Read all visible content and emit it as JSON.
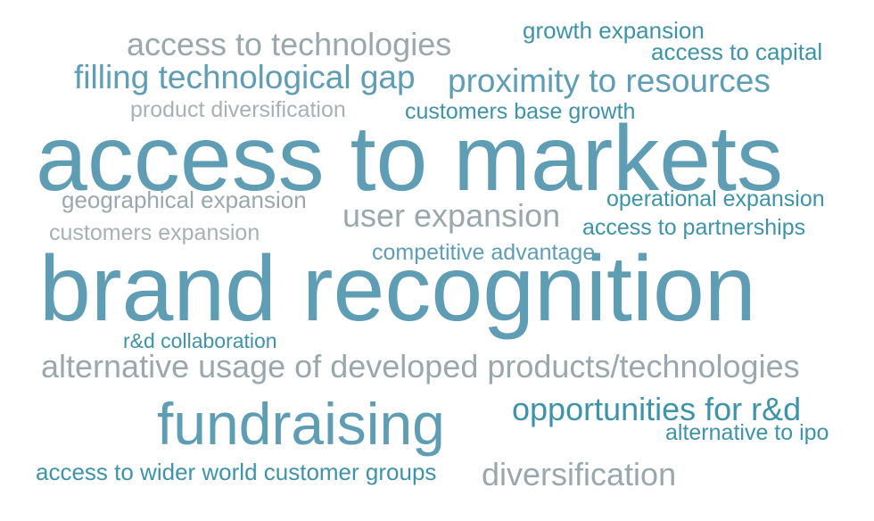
{
  "words": {
    "access_to_markets": "access to markets",
    "brand_recognition": "brand recognition",
    "fundraising": "fundraising",
    "alternative_usage": "alternative usage of developed products/technologies",
    "access_to_technologies": "access to technologies",
    "filling_technological_gap": "filling technological gap",
    "proximity_to_resources": "proximity to resources",
    "growth_expansion": "growth expansion",
    "access_to_capital": "access to capital",
    "product_diversification": "product diversification",
    "customers_base_growth": "customers base growth",
    "geographical_expansion": "geographical expansion",
    "operational_expansion": "operational expansion",
    "user_expansion": "user expansion",
    "access_to_partnerships": "access to partnerships",
    "customers_expansion": "customers expansion",
    "competitive_advantage": "competitive advantage",
    "rd_collaboration": "r&d collaboration",
    "opportunities_for_rd": "opportunities for r&d",
    "alternative_to_ipo": "alternative to ipo",
    "access_to_wider_world": "access to wider world customer groups",
    "diversification": "diversification"
  },
  "colors": {
    "primary_teal": "#5e9db3",
    "dark_teal": "#3f93a8",
    "grey": "#9aa8ad",
    "light_grey": "#a7b1b5",
    "background": "#ffffff"
  }
}
